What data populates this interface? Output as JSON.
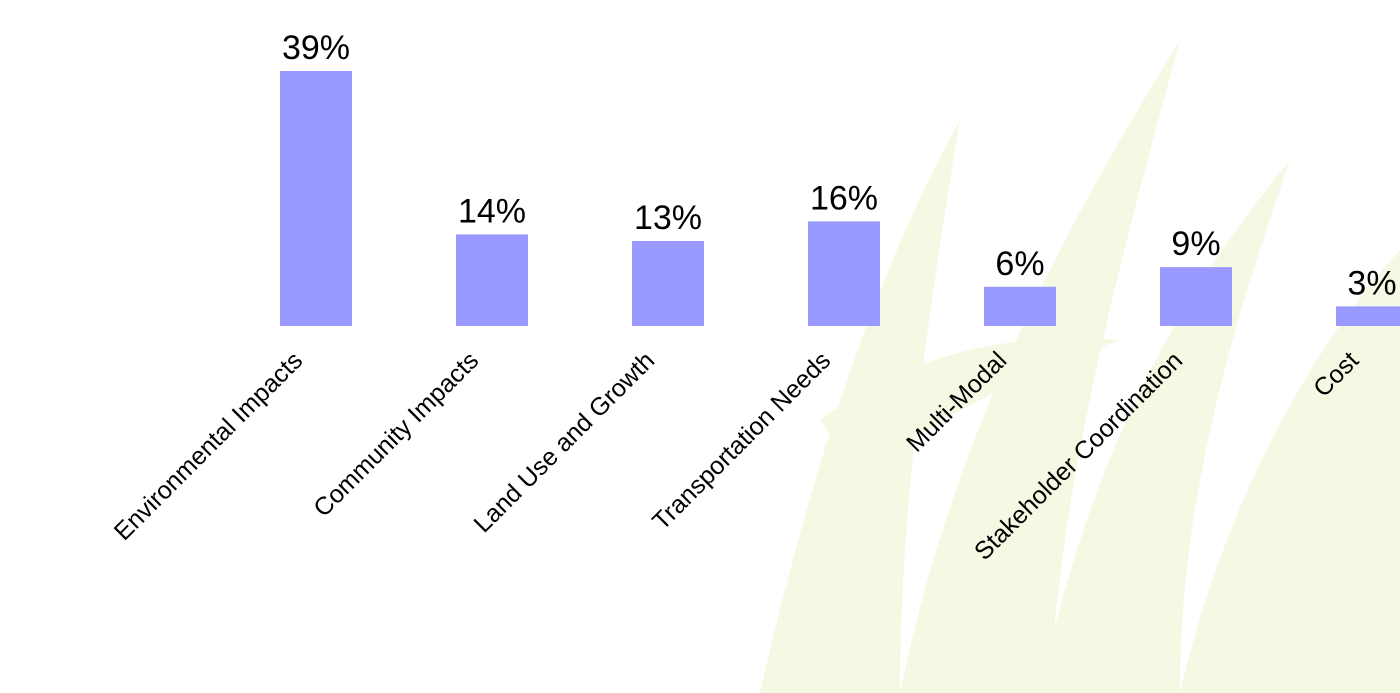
{
  "chart_data": {
    "type": "bar",
    "categories": [
      "Environmental Impacts",
      "Community Impacts",
      "Land Use and Growth",
      "Transportation Needs",
      "Multi-Modal",
      "Stakeholder Coordination",
      "Cost"
    ],
    "values": [
      39,
      14,
      13,
      16,
      6,
      9,
      3
    ],
    "value_labels": [
      "39%",
      "14%",
      "13%",
      "16%",
      "6%",
      "9%",
      "3%"
    ],
    "color": "#9999ff"
  }
}
